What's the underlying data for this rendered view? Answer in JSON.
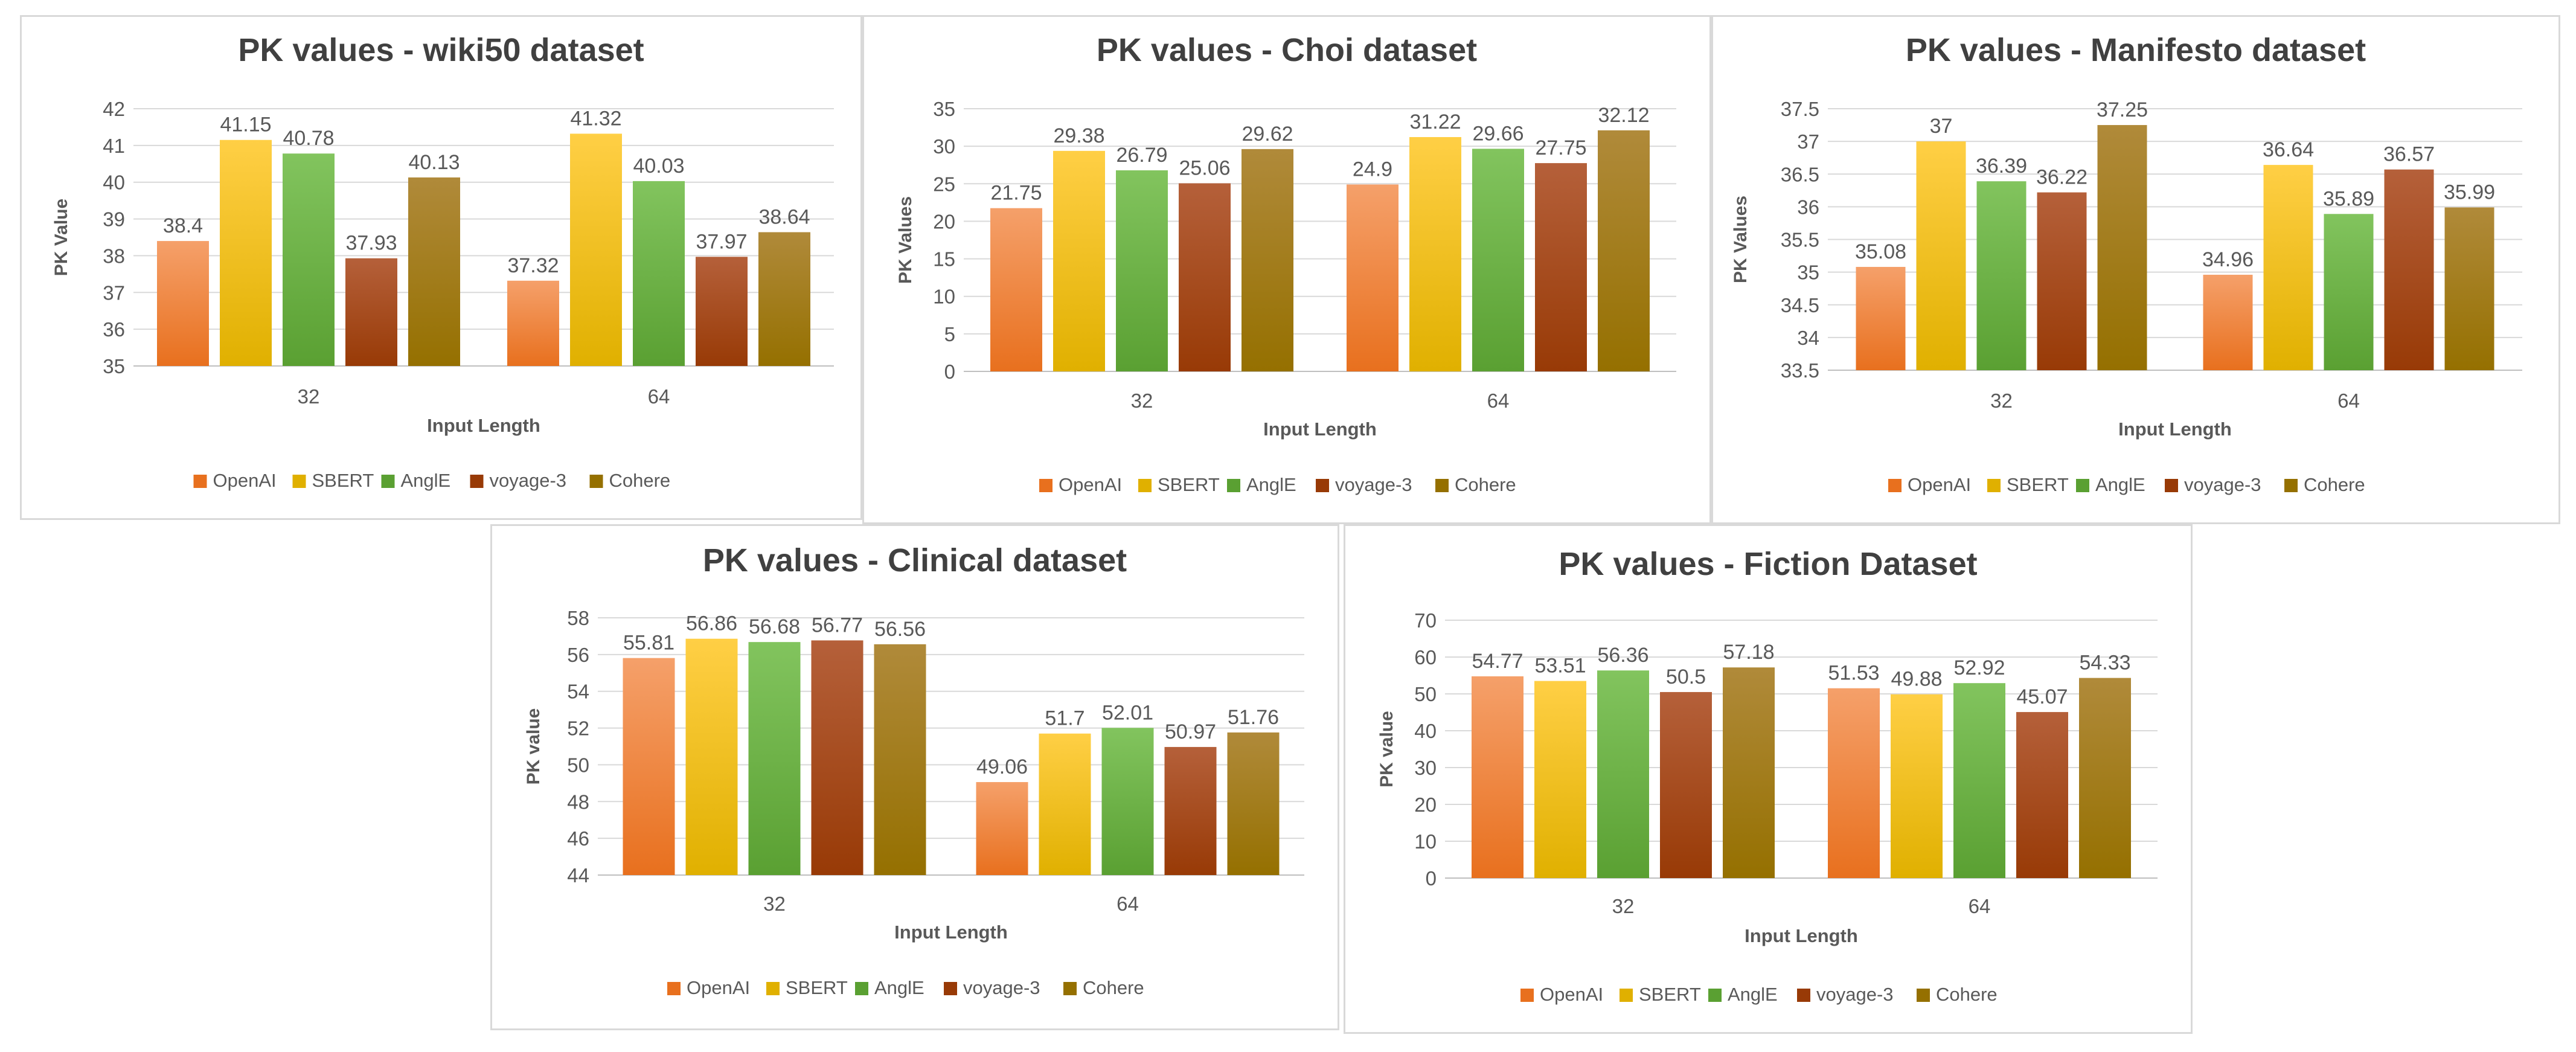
{
  "colors": {
    "OpenAI": [
      "#f5a06a",
      "#e8701e"
    ],
    "SBERT": [
      "#ffcf45",
      "#e0b000"
    ],
    "AnglE": [
      "#82c45e",
      "#5aa032"
    ],
    "voyage-3": [
      "#b5603a",
      "#983a06"
    ],
    "Cohere": [
      "#b08a3a",
      "#957000"
    ],
    "title": "#404040",
    "axis_text": "#595959",
    "grid": "#d9d9d9"
  },
  "chart_data": [
    {
      "type": "bar",
      "title": "PK values - wiki50 dataset",
      "xlabel": "Input Length",
      "ylabel": "PK Value",
      "categories": [
        "32",
        "64"
      ],
      "ylim": [
        35,
        42
      ],
      "yticks": [
        "35",
        "36",
        "37",
        "38",
        "39",
        "40",
        "41",
        "42"
      ],
      "legend_position": "bottom",
      "series": [
        {
          "name": "OpenAI",
          "values": [
            38.4,
            37.32
          ],
          "labels": [
            "38.4",
            "37.32"
          ]
        },
        {
          "name": "SBERT",
          "values": [
            41.15,
            41.32
          ],
          "labels": [
            "41.15",
            "41.32"
          ]
        },
        {
          "name": "AnglE",
          "values": [
            40.78,
            40.03
          ],
          "labels": [
            "40.78",
            "40.03"
          ]
        },
        {
          "name": "voyage-3",
          "values": [
            37.93,
            37.97
          ],
          "labels": [
            "37.93",
            "37.97"
          ]
        },
        {
          "name": "Cohere",
          "values": [
            40.13,
            38.64
          ],
          "labels": [
            "40.13",
            "38.64"
          ]
        }
      ]
    },
    {
      "type": "bar",
      "title": "PK values - Choi dataset",
      "xlabel": "Input Length",
      "ylabel": "PK Values",
      "categories": [
        "32",
        "64"
      ],
      "ylim": [
        0,
        35
      ],
      "yticks": [
        "0",
        "5",
        "10",
        "15",
        "20",
        "25",
        "30",
        "35"
      ],
      "legend_position": "bottom",
      "series": [
        {
          "name": "OpenAI",
          "values": [
            21.75,
            24.9
          ],
          "labels": [
            "21.75",
            "24.9"
          ]
        },
        {
          "name": "SBERT",
          "values": [
            29.38,
            31.22
          ],
          "labels": [
            "29.38",
            "31.22"
          ]
        },
        {
          "name": "AnglE",
          "values": [
            26.79,
            29.66
          ],
          "labels": [
            "26.79",
            "29.66"
          ]
        },
        {
          "name": "voyage-3",
          "values": [
            25.06,
            27.75
          ],
          "labels": [
            "25.06",
            "27.75"
          ]
        },
        {
          "name": "Cohere",
          "values": [
            29.62,
            32.12
          ],
          "labels": [
            "29.62",
            "32.12"
          ]
        }
      ]
    },
    {
      "type": "bar",
      "title": "PK values - Manifesto dataset",
      "xlabel": "Input Length",
      "ylabel": "PK Values",
      "categories": [
        "32",
        "64"
      ],
      "ylim": [
        33.5,
        37.5
      ],
      "yticks": [
        "33.5",
        "34",
        "34.5",
        "35",
        "35.5",
        "36",
        "36.5",
        "37",
        "37.5"
      ],
      "legend_position": "bottom",
      "series": [
        {
          "name": "OpenAI",
          "values": [
            35.08,
            34.96
          ],
          "labels": [
            "35.08",
            "34.96"
          ]
        },
        {
          "name": "SBERT",
          "values": [
            37,
            36.64
          ],
          "labels": [
            "37",
            "36.64"
          ]
        },
        {
          "name": "AnglE",
          "values": [
            36.39,
            35.89
          ],
          "labels": [
            "36.39",
            "35.89"
          ]
        },
        {
          "name": "voyage-3",
          "values": [
            36.22,
            36.57
          ],
          "labels": [
            "36.22",
            "36.57"
          ]
        },
        {
          "name": "Cohere",
          "values": [
            37.25,
            35.99
          ],
          "labels": [
            "37.25",
            "35.99"
          ]
        }
      ]
    },
    {
      "type": "bar",
      "title": "PK values - Clinical dataset",
      "xlabel": "Input Length",
      "ylabel": "PK value",
      "categories": [
        "32",
        "64"
      ],
      "ylim": [
        44,
        58
      ],
      "yticks": [
        "44",
        "46",
        "48",
        "50",
        "52",
        "54",
        "56",
        "58"
      ],
      "legend_position": "bottom",
      "series": [
        {
          "name": "OpenAI",
          "values": [
            55.81,
            49.06
          ],
          "labels": [
            "55.81",
            "49.06"
          ]
        },
        {
          "name": "SBERT",
          "values": [
            56.86,
            51.7
          ],
          "labels": [
            "56.86",
            "51.7"
          ]
        },
        {
          "name": "AnglE",
          "values": [
            56.68,
            52.01
          ],
          "labels": [
            "56.68",
            "52.01"
          ]
        },
        {
          "name": "voyage-3",
          "values": [
            56.77,
            50.97
          ],
          "labels": [
            "56.77",
            "50.97"
          ]
        },
        {
          "name": "Cohere",
          "values": [
            56.56,
            51.76
          ],
          "labels": [
            "56.56",
            "51.76"
          ]
        }
      ]
    },
    {
      "type": "bar",
      "title": "PK values - Fiction Dataset",
      "xlabel": "Input Length",
      "ylabel": "PK value",
      "categories": [
        "32",
        "64"
      ],
      "ylim": [
        0,
        70
      ],
      "yticks": [
        "0",
        "10",
        "20",
        "30",
        "40",
        "50",
        "60",
        "70"
      ],
      "legend_position": "bottom",
      "series": [
        {
          "name": "OpenAI",
          "values": [
            54.77,
            51.53
          ],
          "labels": [
            "54.77",
            "51.53"
          ]
        },
        {
          "name": "SBERT",
          "values": [
            53.51,
            49.88
          ],
          "labels": [
            "53.51",
            "49.88"
          ]
        },
        {
          "name": "AnglE",
          "values": [
            56.36,
            52.92
          ],
          "labels": [
            "56.36",
            "52.92"
          ]
        },
        {
          "name": "voyage-3",
          "values": [
            50.5,
            45.07
          ],
          "labels": [
            "50.5",
            "45.07"
          ]
        },
        {
          "name": "Cohere",
          "values": [
            57.18,
            54.33
          ],
          "labels": [
            "57.18",
            "54.33"
          ]
        }
      ]
    }
  ]
}
